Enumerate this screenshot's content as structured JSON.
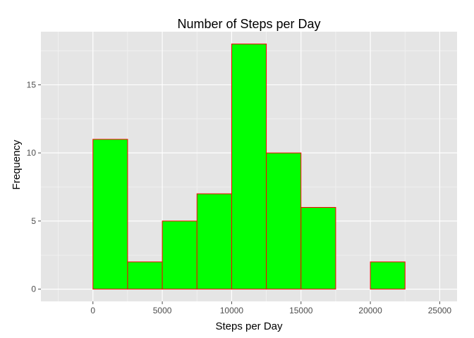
{
  "chart_data": {
    "type": "bar",
    "title": "Number of Steps per Day",
    "xlabel": "Steps per Day",
    "ylabel": "Frequency",
    "xlim": [
      -3750,
      26250
    ],
    "ylim": [
      -0.9,
      18.9
    ],
    "x_ticks": [
      0,
      5000,
      10000,
      15000,
      20000,
      25000
    ],
    "y_ticks": [
      0,
      5,
      10,
      15
    ],
    "y_minor_ticks": [
      2.5,
      7.5,
      12.5,
      17.5
    ],
    "x_minor_ticks": [
      -2500,
      2500,
      7500,
      12500,
      17500,
      22500
    ],
    "bin_width": 2500,
    "bins": [
      {
        "start": -2500,
        "end": 0,
        "count": 0
      },
      {
        "start": 0,
        "end": 2500,
        "count": 11
      },
      {
        "start": 2500,
        "end": 5000,
        "count": 2
      },
      {
        "start": 5000,
        "end": 7500,
        "count": 5
      },
      {
        "start": 7500,
        "end": 10000,
        "count": 7
      },
      {
        "start": 10000,
        "end": 12500,
        "count": 18
      },
      {
        "start": 12500,
        "end": 15000,
        "count": 10
      },
      {
        "start": 15000,
        "end": 17500,
        "count": 6
      },
      {
        "start": 17500,
        "end": 20000,
        "count": 0
      },
      {
        "start": 20000,
        "end": 22500,
        "count": 2
      },
      {
        "start": 22500,
        "end": 25000,
        "count": 0
      }
    ],
    "grid": true,
    "colors": {
      "fill": "#00ff00",
      "outline": "#ff0000",
      "panel": "#e5e5e5",
      "grid_major": "#ffffff",
      "grid_minor": "#f2f2f2"
    }
  }
}
